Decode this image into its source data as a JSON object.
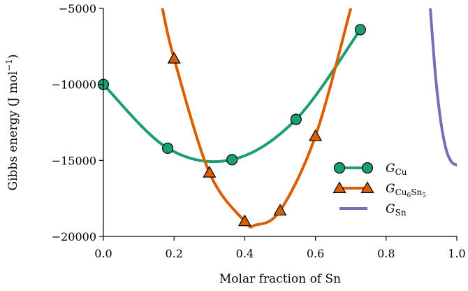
{
  "chart_data": {
    "type": "line",
    "title": "",
    "xlabel": "Molar fraction of Sn",
    "ylabel": "Gibbs energy (J mol",
    "ylabel_sup": "−1",
    "ylabel_tail": ")",
    "xlim": [
      0.0,
      1.0
    ],
    "ylim": [
      -20000,
      -5000
    ],
    "x_ticks": [
      "0.0",
      "0.2",
      "0.4",
      "0.6",
      "0.8",
      "1.0"
    ],
    "y_ticks": [
      "−5000",
      "−10000",
      "−15000",
      "−20000"
    ],
    "legend_position": "right",
    "series": [
      {
        "name": "G",
        "name_sub": "Cu",
        "name_subsub": "",
        "name_sub2": "",
        "color": "#1b9e77",
        "marker": "circle",
        "points": [
          [
            0.0,
            -10000
          ],
          [
            0.182,
            -14200
          ],
          [
            0.364,
            -14950
          ],
          [
            0.545,
            -12300
          ],
          [
            0.727,
            -6400
          ]
        ]
      },
      {
        "name": "G",
        "name_sub": "Cu",
        "name_subsub": "6",
        "name_sub2": "Sn",
        "name_subsub2": "5",
        "color": "#d95f02",
        "marker": "triangle",
        "points": [
          [
            0.167,
            -5000
          ],
          [
            0.2,
            -8300
          ],
          [
            0.3,
            -15800
          ],
          [
            0.4,
            -19000
          ],
          [
            0.43,
            -19250
          ],
          [
            0.5,
            -18300
          ],
          [
            0.6,
            -13400
          ],
          [
            0.7,
            -5000
          ]
        ]
      },
      {
        "name": "G",
        "name_sub": "Sn",
        "name_subsub": "",
        "name_sub2": "",
        "color": "#7570b3",
        "marker": "none",
        "points": [
          [
            0.925,
            -5000
          ],
          [
            0.94,
            -9500
          ],
          [
            0.955,
            -12500
          ],
          [
            0.97,
            -14300
          ],
          [
            0.985,
            -15100
          ],
          [
            1.0,
            -15300
          ]
        ]
      }
    ]
  }
}
